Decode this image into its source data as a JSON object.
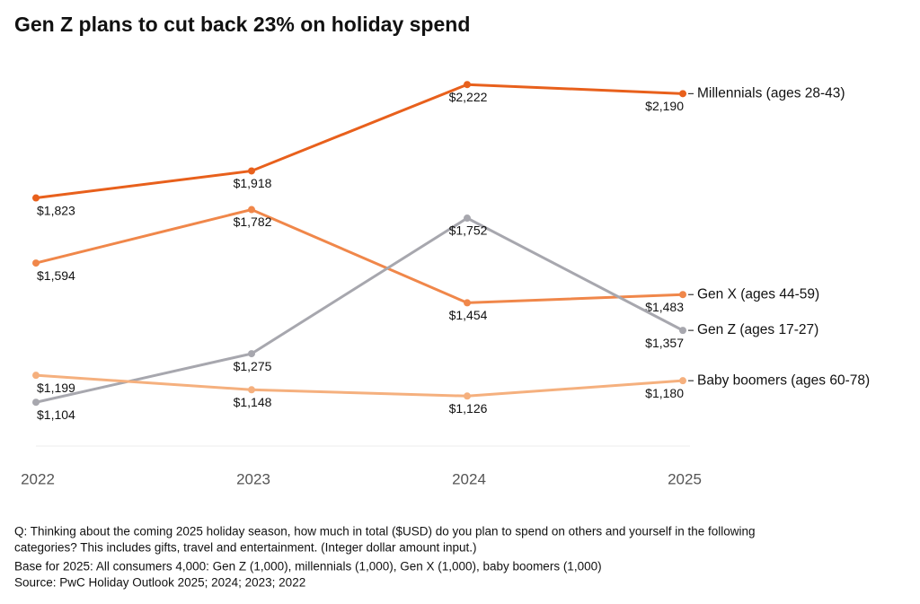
{
  "chart_data": {
    "type": "line",
    "title": "Gen Z plans to cut back 23% on holiday spend",
    "categories": [
      "2022",
      "2023",
      "2024",
      "2025"
    ],
    "series": [
      {
        "name": "Millennials (ages 28-43)",
        "color": "#e8601c",
        "values": [
          1823,
          1918,
          2222,
          2190
        ],
        "value_labels": [
          "$1,823",
          "$1,918",
          "$2,222",
          "$2,190"
        ]
      },
      {
        "name": "Gen X (ages 44-59)",
        "color": "#f0874a",
        "values": [
          1594,
          1782,
          1454,
          1483
        ],
        "value_labels": [
          "$1,594",
          "$1,782",
          "$1,454",
          "$1,483"
        ]
      },
      {
        "name": "Gen Z (ages 17-27)",
        "color": "#a7a7ae",
        "values": [
          1104,
          1275,
          1752,
          1357
        ],
        "value_labels": [
          "$1,104",
          "$1,275",
          "$1,752",
          "$1,357"
        ]
      },
      {
        "name": "Baby boomers (ages 60-78)",
        "color": "#f5b07e",
        "values": [
          1199,
          1148,
          1126,
          1180
        ],
        "value_labels": [
          "$1,199",
          "$1,148",
          "$1,126",
          "$1,180"
        ]
      }
    ],
    "ylim": [
      950,
      2330
    ],
    "notes": [
      "Q: Thinking about the coming 2025 holiday season, how much in total ($USD) do you plan to spend on others and yourself in the following",
      "categories? This includes gifts, travel and entertainment. (Integer dollar amount input.)",
      "Base for 2025: All consumers 4,000: Gen Z (1,000), millennials (1,000), Gen X (1,000), baby boomers (1,000)",
      "Source: PwC Holiday Outlook 2025; 2024; 2023; 2022"
    ]
  }
}
